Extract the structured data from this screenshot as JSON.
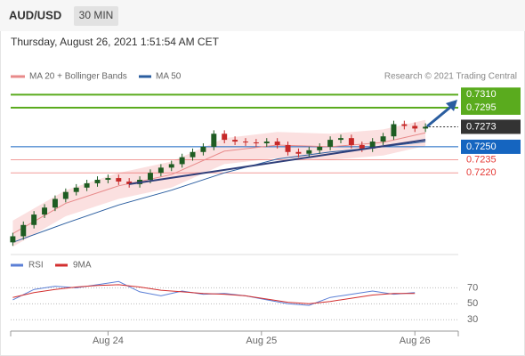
{
  "chart_data": {
    "type": "candlestick",
    "symbol": "AUD/USD",
    "timeframe": "30 MIN",
    "timestamp": "Thursday, August 26, 2021 1:51:54 AM CET",
    "legend": [
      "MA 20 + Bollinger Bands",
      "MA 50"
    ],
    "credit": "Research © 2021 Trading Central",
    "xlim": [
      -0.2,
      42.1
    ],
    "ylim": [
      0.7127,
      0.738
    ],
    "xticks": [
      {
        "value": 9,
        "label": "Aug 24"
      },
      {
        "value": 23.5,
        "label": "Aug 25"
      },
      {
        "value": 38,
        "label": "Aug 26"
      }
    ],
    "up_color": "#1e5c22",
    "down_color": "#c62828",
    "open": [
      0.714,
      0.7147,
      0.716,
      0.7172,
      0.718,
      0.719,
      0.7198,
      0.7203,
      0.7208,
      0.7212,
      0.7214,
      0.721,
      0.7207,
      0.7212,
      0.722,
      0.7226,
      0.723,
      0.7238,
      0.7244,
      0.725,
      0.7265,
      0.7258,
      0.7256,
      0.7255,
      0.7254,
      0.7256,
      0.7252,
      0.7244,
      0.7242,
      0.7246,
      0.725,
      0.7258,
      0.726,
      0.7252,
      0.7248,
      0.7256,
      0.7262,
      0.7276,
      0.7274,
      0.7271
    ],
    "high": [
      0.7151,
      0.7164,
      0.7176,
      0.7184,
      0.7194,
      0.7202,
      0.7207,
      0.7212,
      0.7216,
      0.7218,
      0.7218,
      0.7214,
      0.7216,
      0.7224,
      0.723,
      0.7234,
      0.7242,
      0.7248,
      0.7254,
      0.7269,
      0.7269,
      0.7262,
      0.726,
      0.7259,
      0.726,
      0.726,
      0.7256,
      0.7248,
      0.725,
      0.7254,
      0.7262,
      0.7264,
      0.7264,
      0.7256,
      0.726,
      0.7266,
      0.728,
      0.728,
      0.7278,
      0.7277
    ],
    "low": [
      0.7136,
      0.7143,
      0.7156,
      0.7168,
      0.7176,
      0.7186,
      0.7194,
      0.7199,
      0.7204,
      0.7208,
      0.7206,
      0.7203,
      0.7203,
      0.7208,
      0.7216,
      0.7222,
      0.7226,
      0.7234,
      0.724,
      0.7246,
      0.7254,
      0.7252,
      0.7251,
      0.725,
      0.725,
      0.7248,
      0.724,
      0.7238,
      0.7238,
      0.7242,
      0.7246,
      0.7254,
      0.7248,
      0.7244,
      0.7244,
      0.7252,
      0.7258,
      0.727,
      0.7267,
      0.7267
    ],
    "close": [
      0.7147,
      0.716,
      0.7172,
      0.718,
      0.719,
      0.7198,
      0.7203,
      0.7208,
      0.7212,
      0.7214,
      0.721,
      0.7207,
      0.7212,
      0.722,
      0.7226,
      0.723,
      0.7238,
      0.7244,
      0.725,
      0.7265,
      0.7258,
      0.7256,
      0.7255,
      0.7254,
      0.7256,
      0.7252,
      0.7244,
      0.7242,
      0.7246,
      0.725,
      0.7258,
      0.726,
      0.7252,
      0.7248,
      0.7256,
      0.7262,
      0.7276,
      0.7274,
      0.7271,
      0.7273
    ],
    "ma_x": [
      0,
      5,
      10,
      15,
      20,
      25,
      30,
      35,
      39
    ],
    "ma20": {
      "color": "#e88a8a",
      "values": [
        0.715,
        0.7185,
        0.7205,
        0.7218,
        0.7245,
        0.7252,
        0.725,
        0.7255,
        0.7266
      ]
    },
    "bb_upper": [
      0.7165,
      0.72,
      0.722,
      0.7233,
      0.726,
      0.7267,
      0.7265,
      0.727,
      0.7281
    ],
    "bb_lower": [
      0.7135,
      0.717,
      0.719,
      0.7203,
      0.723,
      0.7237,
      0.7235,
      0.724,
      0.7251
    ],
    "band_color": "#fbe0e0",
    "ma50": {
      "color": "#2a5d9f",
      "values": [
        0.714,
        0.7162,
        0.7183,
        0.72,
        0.722,
        0.7236,
        0.7244,
        0.725,
        0.7256
      ]
    },
    "trendline": {
      "x": [
        11,
        39
      ],
      "y": [
        0.7207,
        0.7258
      ],
      "color": "#2f3f7a"
    },
    "levels": [
      {
        "value": 0.731,
        "label": "0.7310",
        "color": "#5aab1e",
        "boxed": true
      },
      {
        "value": 0.7295,
        "label": "0.7295",
        "color": "#5aab1e",
        "boxed": true
      },
      {
        "value": 0.7273,
        "label": "0.7273",
        "color": "#333333",
        "boxed": true
      },
      {
        "value": 0.725,
        "label": "0.7250",
        "color": "#1565c0",
        "boxed": true
      },
      {
        "value": 0.7235,
        "label": "0.7235",
        "color": "#e53935",
        "boxed": false
      },
      {
        "value": 0.722,
        "label": "0.7220",
        "color": "#e53935",
        "boxed": false
      }
    ],
    "rsi": {
      "ylim": [
        18,
        85
      ],
      "yticks": [
        30,
        50,
        70
      ],
      "x": [
        0,
        2,
        4,
        6,
        8,
        10,
        12,
        14,
        16,
        18,
        20,
        22,
        24,
        26,
        28,
        30,
        32,
        34,
        36,
        38
      ],
      "series": [
        {
          "name": "RSI",
          "color": "#5b7fd6",
          "values": [
            55,
            68,
            72,
            70,
            74,
            78,
            65,
            60,
            66,
            62,
            63,
            60,
            55,
            50,
            48,
            58,
            62,
            66,
            62,
            64
          ]
        },
        {
          "name": "9MA",
          "color": "#d32f2f",
          "values": [
            58,
            64,
            68,
            71,
            73,
            74,
            71,
            67,
            65,
            63,
            62,
            60,
            56,
            52,
            50,
            53,
            57,
            61,
            63,
            63
          ]
        }
      ]
    }
  }
}
